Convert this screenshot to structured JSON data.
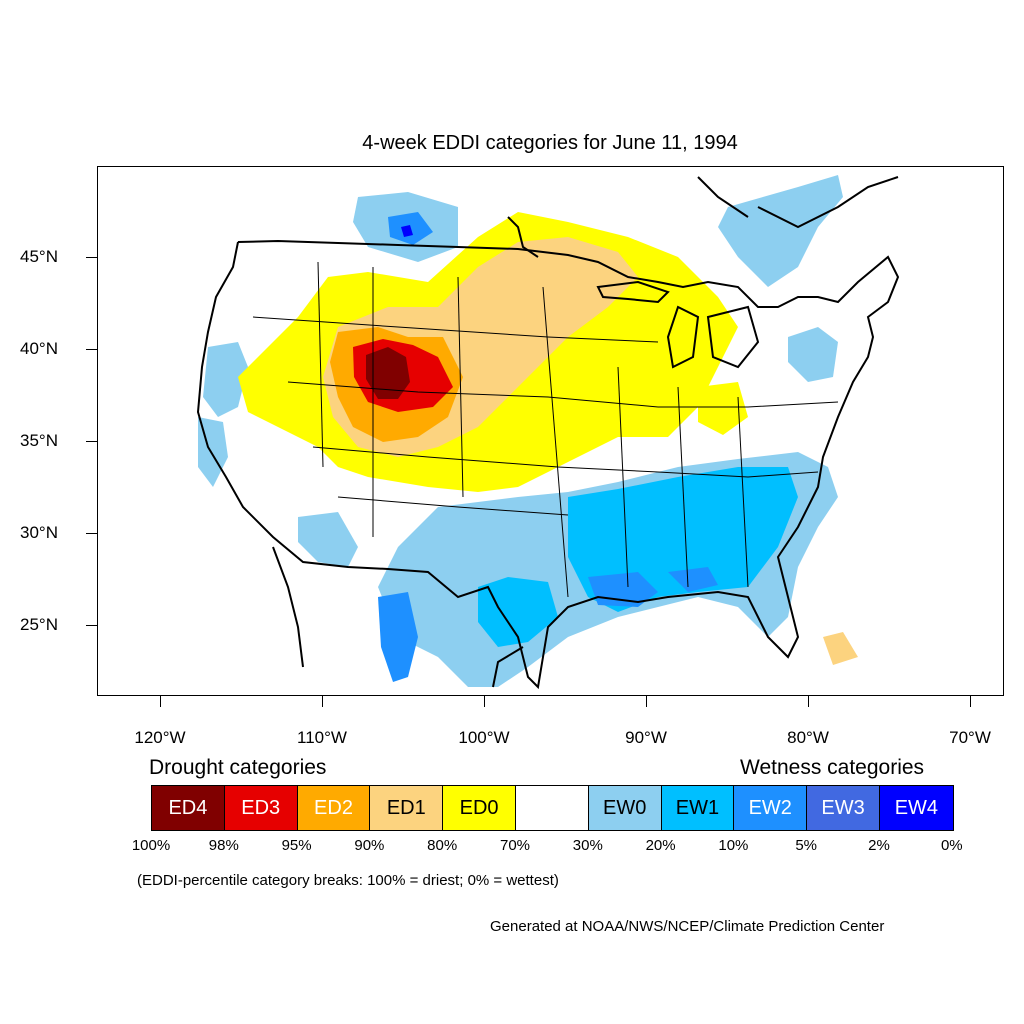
{
  "title": "4-week EDDI categories for June 11, 1994",
  "map": {
    "lat_labels": [
      "45°N",
      "40°N",
      "35°N",
      "30°N",
      "25°N"
    ],
    "lon_labels": [
      "120°W",
      "110°W",
      "100°W",
      "90°W",
      "80°W",
      "70°W"
    ]
  },
  "legend": {
    "drought_heading": "Drought categories",
    "wetness_heading": "Wetness categories",
    "categories": [
      {
        "label": "ED4",
        "color": "#800000"
      },
      {
        "label": "ED3",
        "color": "#e60000"
      },
      {
        "label": "ED2",
        "color": "#ffaa00"
      },
      {
        "label": "ED1",
        "color": "#fcd37f"
      },
      {
        "label": "ED0",
        "color": "#ffff00"
      },
      {
        "label": "",
        "color": "#ffffff"
      },
      {
        "label": "EW0",
        "color": "#8dcff0"
      },
      {
        "label": "EW1",
        "color": "#00bfff"
      },
      {
        "label": "EW2",
        "color": "#1e90ff"
      },
      {
        "label": "EW3",
        "color": "#4169e1"
      },
      {
        "label": "EW4",
        "color": "#0000ff"
      }
    ],
    "breaks": [
      "100%",
      "98%",
      "95%",
      "90%",
      "80%",
      "70%",
      "30%",
      "20%",
      "10%",
      "5%",
      "2%",
      "0%"
    ]
  },
  "note": "(EDDI-percentile category breaks: 100% = driest; 0% = wettest)",
  "credit": "Generated at NOAA/NWS/NCEP/Climate Prediction Center"
}
